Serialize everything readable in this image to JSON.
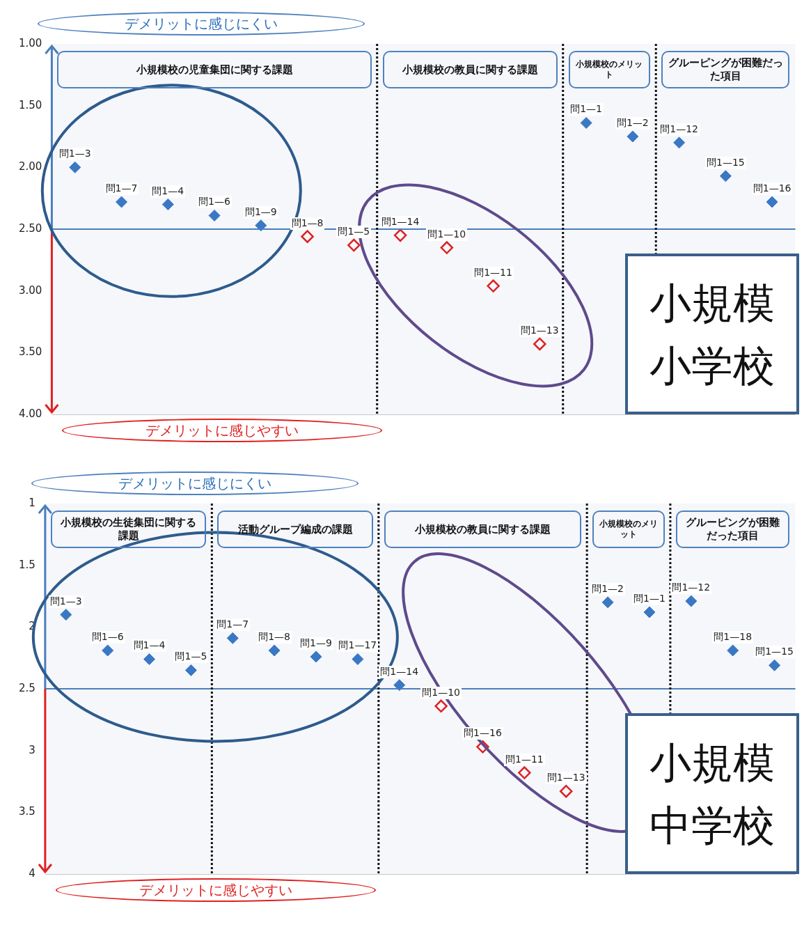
{
  "chart_data": [
    {
      "type": "scatter",
      "title": "小規模小学校",
      "annotations": [
        "デメリットに感じにくい",
        "デメリットに感じやすい"
      ],
      "categories": [
        "問1—3",
        "問1—7",
        "問1—4",
        "問1—6",
        "問1—9",
        "問1—8",
        "問1—5",
        "問1—14",
        "問1—10",
        "問1—11",
        "問1—13",
        "問1—1",
        "問1—2",
        "問1—12",
        "問1—15",
        "問1—16"
      ],
      "series": [
        {
          "color": "#3b78c3",
          "values": [
            2.0,
            2.28,
            2.3,
            2.39,
            2.47,
            null,
            null,
            null,
            null,
            null,
            null,
            1.64,
            1.75,
            1.8,
            2.07,
            2.28
          ]
        },
        {
          "color": "#e02020",
          "values": [
            null,
            null,
            null,
            null,
            null,
            2.56,
            2.63,
            2.55,
            2.65,
            2.96,
            3.43,
            null,
            null,
            null,
            null,
            null
          ]
        }
      ],
      "ylim": [
        4,
        1
      ],
      "yticks": [
        {
          "value": 1,
          "label": "1.00"
        },
        {
          "value": 1.5,
          "label": "1.50"
        },
        {
          "value": 2,
          "label": "2.00"
        },
        {
          "value": 2.5,
          "label": "2.50"
        },
        {
          "value": 3,
          "label": "3.00"
        },
        {
          "value": 3.5,
          "label": "3.50"
        },
        {
          "value": 4,
          "label": "4.00"
        }
      ],
      "ref_lines": [
        {
          "axis": "y",
          "value": 2.5,
          "color": "#4a7ebb"
        }
      ],
      "bands": [
        {
          "axis": "x",
          "from": "問1—3",
          "to": "問1—5",
          "label": "小規模校の児童集団に関する課題",
          "color": "#f5f7fb"
        },
        {
          "axis": "x",
          "from": "問1—14",
          "to": "問1—13",
          "label": "小規模校の教員に関する課題",
          "color": "#f5f7fb"
        },
        {
          "axis": "x",
          "from": "問1—1",
          "to": "問1—2",
          "label": "小規模校のメリット",
          "color": "#f5f7fb"
        },
        {
          "axis": "x",
          "from": "問1—12",
          "to": "問1—16",
          "label": "グルーピングが困難だった項目",
          "color": "#f5f7fb"
        }
      ],
      "grid": "y",
      "legend": false,
      "tick_labels": "y",
      "marker": "diamond"
    },
    {
      "type": "scatter",
      "title": "小規模中学校",
      "annotations": [
        "デメリットに感じにくい",
        "デメリットに感じやすい"
      ],
      "categories": [
        "問1—3",
        "問1—6",
        "問1—4",
        "問1—5",
        "問1—7",
        "問1—8",
        "問1—9",
        "問1—17",
        "問1—14",
        "問1—10",
        "問1—16",
        "問1—11",
        "問1—13",
        "問1—2",
        "問1—1",
        "問1—12",
        "問1—18",
        "問1—15"
      ],
      "series": [
        {
          "color": "#3b78c3",
          "values": [
            1.9,
            2.19,
            2.26,
            2.35,
            2.09,
            2.19,
            2.24,
            2.26,
            2.47,
            null,
            null,
            null,
            null,
            1.8,
            1.88,
            1.79,
            2.19,
            2.31
          ]
        },
        {
          "color": "#e02020",
          "values": [
            null,
            null,
            null,
            null,
            null,
            null,
            null,
            null,
            null,
            2.64,
            2.97,
            3.18,
            3.33,
            null,
            null,
            null,
            null,
            null
          ]
        }
      ],
      "ylim": [
        4,
        1
      ],
      "yticks": [
        1,
        1.5,
        2,
        2.5,
        3,
        3.5,
        4
      ],
      "ref_lines": [
        {
          "axis": "y",
          "value": 2.5,
          "color": "#4a7ebb"
        }
      ],
      "bands": [
        {
          "axis": "x",
          "from": "問1—3",
          "to": "問1—5",
          "label": "小規模校の生徒集団に関する課題",
          "color": "#f5f7fb"
        },
        {
          "axis": "x",
          "from": "問1—7",
          "to": "問1—17",
          "label": "活動グループ編成の課題",
          "color": "#f5f7fb"
        },
        {
          "axis": "x",
          "from": "問1—14",
          "to": "問1—13",
          "label": "小規模校の教員に関する課題",
          "color": "#f5f7fb"
        },
        {
          "axis": "x",
          "from": "問1—2",
          "to": "問1—1",
          "label": "小規模校のメリット",
          "color": "#f5f7fb"
        },
        {
          "axis": "x",
          "from": "問1—12",
          "to": "問1—15",
          "label": "グルーピングが困難だった項目",
          "color": "#f5f7fb"
        }
      ],
      "grid": "y",
      "legend": false,
      "tick_labels": "y",
      "marker": "diamond"
    }
  ]
}
